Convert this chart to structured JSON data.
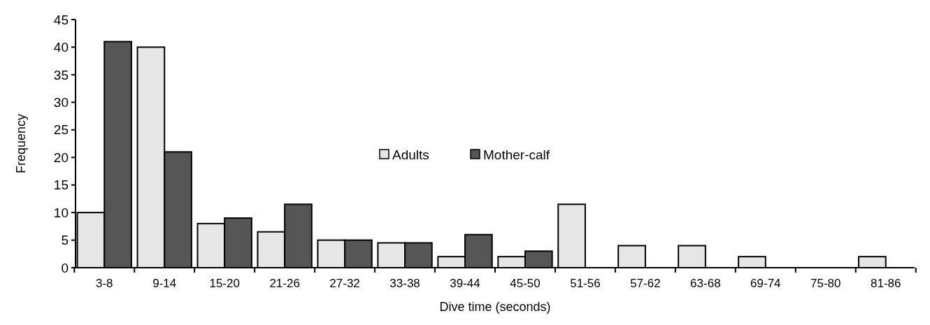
{
  "chart_data": {
    "type": "bar",
    "xlabel": "Dive time (seconds)",
    "ylabel": "Frequency",
    "categories": [
      "3-8",
      "9-14",
      "15-20",
      "21-26",
      "27-32",
      "33-38",
      "39-44",
      "45-50",
      "51-56",
      "57-62",
      "63-68",
      "69-74",
      "75-80",
      "81-86"
    ],
    "series": [
      {
        "name": "Adults",
        "color": "#e6e6e6",
        "values": [
          10,
          40,
          8,
          6.5,
          5,
          4.5,
          2,
          2,
          11.5,
          4,
          4,
          2,
          0,
          2
        ]
      },
      {
        "name": "Mother-calf",
        "color": "#555555",
        "values": [
          41,
          21,
          9,
          11.5,
          5,
          4.5,
          6,
          3,
          0,
          0,
          0,
          0,
          0,
          0
        ]
      }
    ],
    "ylim": [
      0,
      45
    ],
    "yticks": [
      0,
      5,
      10,
      15,
      20,
      25,
      30,
      35,
      40,
      45
    ],
    "grid": false,
    "legend": "bottom left"
  }
}
